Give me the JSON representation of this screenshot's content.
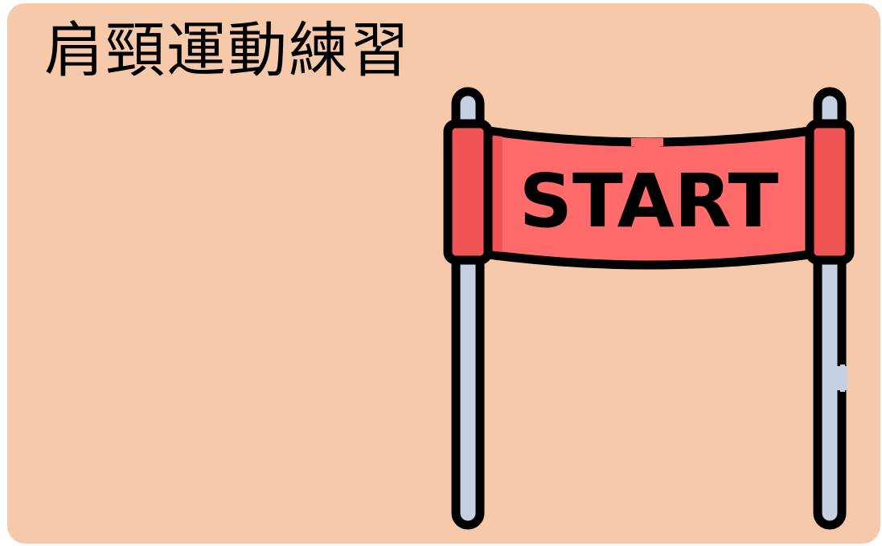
{
  "card": {
    "title": "肩頸運動練習",
    "background_color": "#f7c9ab"
  },
  "illustration": {
    "icon": "start-gate-icon",
    "banner_text": "START",
    "banner_color": "#ff6b6b",
    "banner_side_color": "#f05454",
    "pole_color": "#c5d0e3",
    "outline_color": "#000000"
  }
}
